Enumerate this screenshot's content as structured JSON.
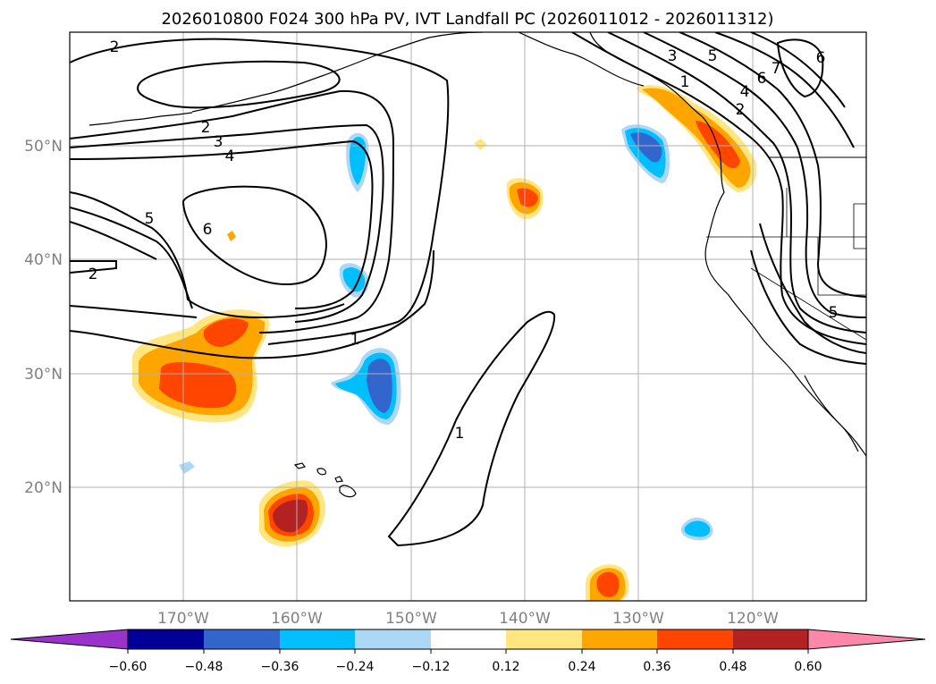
{
  "title": "2026010800 F024 300 hPa PV, IVT Landfall PC (2026011012 - 2026011312)",
  "map": {
    "lon_labels": [
      "170°W",
      "160°W",
      "150°W",
      "140°W",
      "130°W",
      "120°W"
    ],
    "lat_labels": [
      "50°N",
      "40°N",
      "30°N",
      "20°N"
    ]
  },
  "contour_labels": [
    "2",
    "2",
    "3",
    "4",
    "5",
    "6",
    "2",
    "1",
    "1",
    "3",
    "5",
    "1",
    "4",
    "2",
    "6",
    "7",
    "6",
    "5"
  ],
  "colorbar": {
    "ticks": [
      "−0.60",
      "−0.48",
      "−0.36",
      "−0.24",
      "−0.12",
      "0.12",
      "0.24",
      "0.36",
      "0.48",
      "0.60"
    ],
    "colors": {
      "under": "#9933cc",
      "c1": "#000099",
      "c2": "#3366cc",
      "c3": "#00bfff",
      "c4": "#add8f5",
      "c5": "#ffffff",
      "c6": "#ffe680",
      "c7": "#ffa500",
      "c8": "#ff4500",
      "c9": "#b22222",
      "over": "#ff88aa"
    }
  }
}
